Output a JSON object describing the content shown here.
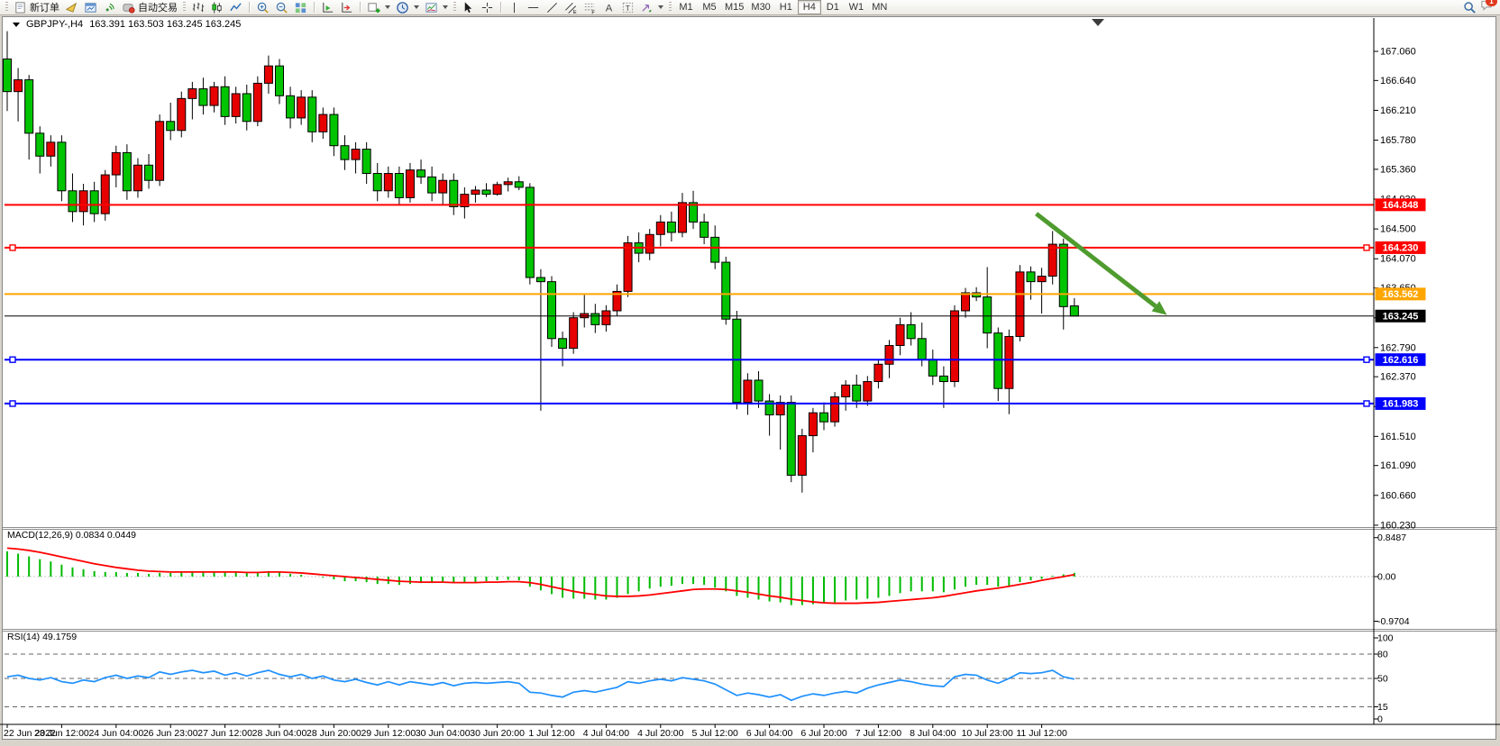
{
  "toolbar": {
    "new_order_label": "新订单",
    "autotrading_label": "自动交易",
    "timeframes": [
      "M1",
      "M5",
      "M15",
      "M30",
      "H1",
      "H4",
      "D1",
      "W1",
      "MN"
    ],
    "active_timeframe": "H4",
    "notification_count": "1"
  },
  "chart": {
    "symbol": "GBPJPY-,H4",
    "ohlc_text": "163.391 163.503 163.245 163.245"
  },
  "indicators": {
    "macd_label": "MACD(12,26,9) 0.0834 0.0449",
    "rsi_label": "RSI(14) 49.1759"
  },
  "chart_data": {
    "type": "candlestick",
    "symbol": "GBPJPY-",
    "timeframe": "H4",
    "ylim": [
      160.23,
      167.06
    ],
    "price_ticks": [
      "167.060",
      "166.640",
      "166.210",
      "165.780",
      "165.360",
      "164.930",
      "164.500",
      "164.070",
      "163.650",
      "163.220",
      "162.790",
      "162.370",
      "161.940",
      "161.510",
      "161.090",
      "160.660",
      "160.230"
    ],
    "levels": [
      {
        "price": 164.848,
        "label": "164.848",
        "color": "#FF0000",
        "width": 2,
        "handles": false
      },
      {
        "price": 164.23,
        "label": "164.230",
        "color": "#FF0000",
        "width": 2,
        "handles": true
      },
      {
        "price": 163.562,
        "label": "163.562",
        "color": "#FFA500",
        "width": 2,
        "handles": false
      },
      {
        "price": 162.616,
        "label": "162.616",
        "color": "#0000FF",
        "width": 2,
        "handles": true
      },
      {
        "price": 161.983,
        "label": "161.983",
        "color": "#0000FF",
        "width": 2,
        "handles": true
      }
    ],
    "bid": {
      "price": 163.245,
      "label": "163.245",
      "color": "#000000"
    },
    "bull_color": "#E60000",
    "bear_color": "#00C400",
    "candles": [
      [
        166.95,
        167.35,
        166.2,
        166.48
      ],
      [
        166.48,
        166.82,
        166.05,
        166.65
      ],
      [
        166.65,
        166.72,
        165.5,
        165.88
      ],
      [
        165.88,
        165.98,
        165.3,
        165.55
      ],
      [
        165.55,
        165.85,
        165.4,
        165.75
      ],
      [
        165.75,
        165.85,
        164.9,
        165.05
      ],
      [
        165.05,
        165.3,
        164.6,
        164.75
      ],
      [
        164.75,
        165.15,
        164.55,
        165.05
      ],
      [
        165.05,
        165.18,
        164.6,
        164.72
      ],
      [
        164.72,
        165.35,
        164.62,
        165.28
      ],
      [
        165.28,
        165.7,
        165.1,
        165.6
      ],
      [
        165.6,
        165.72,
        164.92,
        165.05
      ],
      [
        165.05,
        165.52,
        164.95,
        165.42
      ],
      [
        165.42,
        165.58,
        165.08,
        165.2
      ],
      [
        165.2,
        166.15,
        165.12,
        166.05
      ],
      [
        166.05,
        166.32,
        165.78,
        165.92
      ],
      [
        165.92,
        166.48,
        165.82,
        166.38
      ],
      [
        166.38,
        166.62,
        166.08,
        166.52
      ],
      [
        166.52,
        166.68,
        166.15,
        166.28
      ],
      [
        166.28,
        166.62,
        166.18,
        166.55
      ],
      [
        166.55,
        166.7,
        166.0,
        166.12
      ],
      [
        166.12,
        166.55,
        166.02,
        166.45
      ],
      [
        166.45,
        166.58,
        165.92,
        166.05
      ],
      [
        166.05,
        166.7,
        165.98,
        166.6
      ],
      [
        166.6,
        167.0,
        166.45,
        166.85
      ],
      [
        166.85,
        166.95,
        166.3,
        166.42
      ],
      [
        166.42,
        166.55,
        165.95,
        166.1
      ],
      [
        166.1,
        166.5,
        166.0,
        166.4
      ],
      [
        166.4,
        166.5,
        165.75,
        165.9
      ],
      [
        165.9,
        166.25,
        165.8,
        166.15
      ],
      [
        166.15,
        166.25,
        165.55,
        165.7
      ],
      [
        165.7,
        165.85,
        165.35,
        165.5
      ],
      [
        165.5,
        165.75,
        165.3,
        165.65
      ],
      [
        165.65,
        165.75,
        165.15,
        165.3
      ],
      [
        165.3,
        165.45,
        164.9,
        165.05
      ],
      [
        165.05,
        165.4,
        164.95,
        165.3
      ],
      [
        165.3,
        165.4,
        164.85,
        164.95
      ],
      [
        164.95,
        165.45,
        164.88,
        165.35
      ],
      [
        165.35,
        165.5,
        165.15,
        165.25
      ],
      [
        165.25,
        165.4,
        164.9,
        165.02
      ],
      [
        165.02,
        165.3,
        164.85,
        165.2
      ],
      [
        165.2,
        165.3,
        164.7,
        164.82
      ],
      [
        164.82,
        165.1,
        164.65,
        165.0
      ],
      [
        165.0,
        165.12,
        164.88,
        165.06
      ],
      [
        165.06,
        165.16,
        164.96,
        165.0
      ],
      [
        165.0,
        165.18,
        164.98,
        165.14
      ],
      [
        165.14,
        165.24,
        165.04,
        165.18
      ],
      [
        165.18,
        165.26,
        165.06,
        165.1
      ],
      [
        165.1,
        165.16,
        163.7,
        163.8
      ],
      [
        163.8,
        163.92,
        161.88,
        163.74
      ],
      [
        163.74,
        163.82,
        162.8,
        162.92
      ],
      [
        162.92,
        163.02,
        162.52,
        162.78
      ],
      [
        162.78,
        163.3,
        162.7,
        163.22
      ],
      [
        163.22,
        163.55,
        163.08,
        163.28
      ],
      [
        163.28,
        163.42,
        163.0,
        163.12
      ],
      [
        163.12,
        163.4,
        163.02,
        163.32
      ],
      [
        163.32,
        163.7,
        163.25,
        163.6
      ],
      [
        163.6,
        164.4,
        163.52,
        164.3
      ],
      [
        164.3,
        164.45,
        164.02,
        164.15
      ],
      [
        164.15,
        164.5,
        164.05,
        164.42
      ],
      [
        164.42,
        164.7,
        164.25,
        164.6
      ],
      [
        164.6,
        164.75,
        164.32,
        164.45
      ],
      [
        164.45,
        165.02,
        164.38,
        164.88
      ],
      [
        164.88,
        165.05,
        164.5,
        164.6
      ],
      [
        164.6,
        164.72,
        164.28,
        164.38
      ],
      [
        164.38,
        164.55,
        163.92,
        164.02
      ],
      [
        164.02,
        164.1,
        163.12,
        163.2
      ],
      [
        163.2,
        163.32,
        161.9,
        162.0
      ],
      [
        162.0,
        162.42,
        161.82,
        162.32
      ],
      [
        162.32,
        162.45,
        161.92,
        162.02
      ],
      [
        162.02,
        162.12,
        161.52,
        161.82
      ],
      [
        161.82,
        162.1,
        161.32,
        162.0
      ],
      [
        162.0,
        162.1,
        160.85,
        160.95
      ],
      [
        160.95,
        161.62,
        160.7,
        161.52
      ],
      [
        161.52,
        161.92,
        161.28,
        161.85
      ],
      [
        161.85,
        162.0,
        161.6,
        161.72
      ],
      [
        161.72,
        162.15,
        161.65,
        162.08
      ],
      [
        162.08,
        162.32,
        161.88,
        162.25
      ],
      [
        162.25,
        162.4,
        161.92,
        162.02
      ],
      [
        162.02,
        162.38,
        161.95,
        162.3
      ],
      [
        162.3,
        162.62,
        162.2,
        162.55
      ],
      [
        162.55,
        162.9,
        162.35,
        162.82
      ],
      [
        162.82,
        163.22,
        162.68,
        163.12
      ],
      [
        163.12,
        163.3,
        162.82,
        162.92
      ],
      [
        162.92,
        163.15,
        162.52,
        162.62
      ],
      [
        162.62,
        162.76,
        162.25,
        162.38
      ],
      [
        162.38,
        162.52,
        161.92,
        162.3
      ],
      [
        162.3,
        163.4,
        162.22,
        163.32
      ],
      [
        163.32,
        163.65,
        163.22,
        163.58
      ],
      [
        163.58,
        163.66,
        163.46,
        163.52
      ],
      [
        163.52,
        163.95,
        162.78,
        163.0
      ],
      [
        163.0,
        163.08,
        162.02,
        162.2
      ],
      [
        162.2,
        163.05,
        161.83,
        162.95
      ],
      [
        162.95,
        163.98,
        162.88,
        163.88
      ],
      [
        163.88,
        163.96,
        163.48,
        163.74
      ],
      [
        163.74,
        163.94,
        163.28,
        163.82
      ],
      [
        163.82,
        164.47,
        163.7,
        164.28
      ],
      [
        164.28,
        164.36,
        163.05,
        163.38
      ],
      [
        163.391,
        163.503,
        163.245,
        163.245
      ]
    ],
    "time_labels": [
      "22 Jun 2022",
      "23 Jun 12:00",
      "24 Jun 04:00",
      "26 Jun 23:00",
      "27 Jun 12:00",
      "28 Jun 04:00",
      "28 Jun 20:00",
      "29 Jun 12:00",
      "30 Jun 04:00",
      "30 Jun 20:00",
      "1 Jul 12:00",
      "4 Jul 04:00",
      "4 Jul 20:00",
      "5 Jul 12:00",
      "6 Jul 04:00",
      "6 Jul 20:00",
      "7 Jul 12:00",
      "8 Jul 04:00",
      "10 Jul 23:00",
      "11 Jul 12:00"
    ],
    "label_every": 5,
    "macd": {
      "axis_labels": [
        "0.8487",
        "0.00",
        "-0.9704"
      ],
      "axis_values": [
        0.8487,
        0,
        -0.9704
      ],
      "hist_color": "#00BB00",
      "signal_color": "#FF0000",
      "hist": [
        0.55,
        0.5,
        0.44,
        0.38,
        0.33,
        0.26,
        0.2,
        0.16,
        0.12,
        0.1,
        0.1,
        0.08,
        0.08,
        0.06,
        0.08,
        0.08,
        0.1,
        0.12,
        0.12,
        0.12,
        0.1,
        0.1,
        0.08,
        0.1,
        0.12,
        0.1,
        0.06,
        0.04,
        0.0,
        -0.02,
        -0.06,
        -0.1,
        -0.1,
        -0.12,
        -0.16,
        -0.16,
        -0.18,
        -0.16,
        -0.14,
        -0.14,
        -0.12,
        -0.14,
        -0.14,
        -0.12,
        -0.1,
        -0.08,
        -0.07,
        -0.08,
        -0.22,
        -0.3,
        -0.38,
        -0.46,
        -0.48,
        -0.48,
        -0.5,
        -0.5,
        -0.46,
        -0.38,
        -0.32,
        -0.26,
        -0.22,
        -0.2,
        -0.16,
        -0.16,
        -0.18,
        -0.24,
        -0.32,
        -0.42,
        -0.46,
        -0.5,
        -0.54,
        -0.56,
        -0.62,
        -0.62,
        -0.6,
        -0.58,
        -0.56,
        -0.52,
        -0.5,
        -0.48,
        -0.46,
        -0.42,
        -0.36,
        -0.32,
        -0.32,
        -0.32,
        -0.34,
        -0.28,
        -0.22,
        -0.18,
        -0.18,
        -0.22,
        -0.2,
        -0.12,
        -0.08,
        -0.05,
        0.02,
        0.05,
        0.0834
      ],
      "signal": [
        0.62,
        0.6,
        0.57,
        0.53,
        0.48,
        0.43,
        0.38,
        0.33,
        0.28,
        0.24,
        0.2,
        0.17,
        0.14,
        0.12,
        0.11,
        0.1,
        0.1,
        0.1,
        0.1,
        0.1,
        0.1,
        0.1,
        0.09,
        0.09,
        0.1,
        0.1,
        0.09,
        0.08,
        0.06,
        0.04,
        0.02,
        0.0,
        -0.02,
        -0.04,
        -0.06,
        -0.08,
        -0.1,
        -0.11,
        -0.12,
        -0.12,
        -0.12,
        -0.13,
        -0.13,
        -0.13,
        -0.12,
        -0.12,
        -0.11,
        -0.11,
        -0.13,
        -0.17,
        -0.22,
        -0.27,
        -0.32,
        -0.36,
        -0.39,
        -0.42,
        -0.43,
        -0.43,
        -0.42,
        -0.4,
        -0.37,
        -0.34,
        -0.31,
        -0.28,
        -0.27,
        -0.27,
        -0.28,
        -0.31,
        -0.34,
        -0.38,
        -0.42,
        -0.45,
        -0.49,
        -0.52,
        -0.55,
        -0.57,
        -0.58,
        -0.58,
        -0.58,
        -0.57,
        -0.56,
        -0.54,
        -0.52,
        -0.5,
        -0.48,
        -0.46,
        -0.43,
        -0.39,
        -0.35,
        -0.31,
        -0.28,
        -0.25,
        -0.21,
        -0.17,
        -0.13,
        -0.08,
        -0.04,
        0.0,
        0.0449
      ]
    },
    "rsi": {
      "line_color": "#1E90FF",
      "level_lines": [
        80,
        50,
        15
      ],
      "axis_labels": [
        100,
        80,
        50,
        15,
        0
      ],
      "values": [
        52,
        54,
        50,
        48,
        51,
        46,
        44,
        48,
        46,
        51,
        54,
        50,
        53,
        51,
        58,
        55,
        58,
        60,
        57,
        59,
        54,
        57,
        53,
        57,
        60,
        55,
        52,
        55,
        50,
        53,
        48,
        46,
        49,
        45,
        42,
        46,
        42,
        46,
        44,
        42,
        45,
        41,
        44,
        45,
        44,
        45,
        46,
        44,
        33,
        32,
        29,
        27,
        33,
        35,
        33,
        36,
        39,
        46,
        44,
        47,
        49,
        47,
        51,
        49,
        47,
        43,
        36,
        29,
        32,
        30,
        27,
        30,
        23,
        28,
        31,
        29,
        32,
        34,
        32,
        38,
        42,
        45,
        48,
        46,
        43,
        41,
        40,
        52,
        55,
        54,
        48,
        44,
        50,
        57,
        56,
        57,
        60,
        52,
        49.18
      ]
    },
    "arrow": {
      "from_index": 94.5,
      "from_price": 164.72,
      "to_index": 106.5,
      "to_price": 163.26,
      "color": "#4E9B2E"
    }
  }
}
